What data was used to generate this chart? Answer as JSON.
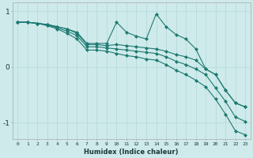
{
  "xlabel": "Humidex (Indice chaleur)",
  "bg_color": "#ceeaea",
  "grid_color": "#bbdddd",
  "line_color": "#1e7a72",
  "marker_color": "#1e7a72",
  "xlim": [
    -0.5,
    23.5
  ],
  "ylim": [
    -1.3,
    1.15
  ],
  "yticks": [
    -1,
    0,
    1
  ],
  "xticks": [
    0,
    1,
    2,
    3,
    4,
    5,
    6,
    7,
    8,
    9,
    10,
    11,
    12,
    13,
    14,
    15,
    16,
    17,
    18,
    19,
    20,
    21,
    22,
    23
  ],
  "series1_x": [
    0,
    1,
    2,
    3,
    4,
    5,
    6,
    7,
    8,
    9,
    10,
    11,
    12,
    13,
    14,
    15,
    16,
    17,
    18,
    19,
    20,
    21,
    22,
    23
  ],
  "series1_y": [
    0.8,
    0.8,
    0.78,
    0.76,
    0.72,
    0.68,
    0.62,
    0.42,
    0.42,
    0.42,
    0.8,
    0.62,
    0.55,
    0.5,
    0.95,
    0.72,
    0.58,
    0.5,
    0.32,
    -0.04,
    -0.14,
    -0.42,
    -0.65,
    -0.72
  ],
  "series2_x": [
    0,
    1,
    2,
    3,
    4,
    5,
    6,
    7,
    8,
    9,
    10,
    11,
    12,
    13,
    14,
    15,
    16,
    17,
    18,
    19,
    20,
    21,
    22,
    23
  ],
  "series2_y": [
    0.8,
    0.8,
    0.78,
    0.76,
    0.72,
    0.68,
    0.6,
    0.4,
    0.4,
    0.38,
    0.4,
    0.38,
    0.36,
    0.34,
    0.32,
    0.28,
    0.22,
    0.18,
    0.12,
    -0.04,
    -0.14,
    -0.42,
    -0.65,
    -0.72
  ],
  "series3_x": [
    0,
    1,
    2,
    3,
    4,
    5,
    6,
    7,
    8,
    9,
    10,
    11,
    12,
    13,
    14,
    15,
    16,
    17,
    18,
    19,
    20,
    21,
    22,
    23
  ],
  "series3_y": [
    0.8,
    0.8,
    0.78,
    0.75,
    0.7,
    0.64,
    0.56,
    0.36,
    0.36,
    0.34,
    0.32,
    0.3,
    0.28,
    0.26,
    0.24,
    0.18,
    0.1,
    0.04,
    -0.04,
    -0.14,
    -0.38,
    -0.62,
    -0.9,
    -0.98
  ],
  "series4_x": [
    0,
    1,
    2,
    3,
    4,
    5,
    6,
    7,
    8,
    9,
    10,
    11,
    12,
    13,
    14,
    15,
    16,
    17,
    18,
    19,
    20,
    21,
    22,
    23
  ],
  "series4_y": [
    0.8,
    0.8,
    0.78,
    0.74,
    0.68,
    0.6,
    0.5,
    0.3,
    0.3,
    0.28,
    0.24,
    0.2,
    0.18,
    0.14,
    0.12,
    0.04,
    -0.06,
    -0.14,
    -0.24,
    -0.36,
    -0.58,
    -0.85,
    -1.15,
    -1.22
  ]
}
